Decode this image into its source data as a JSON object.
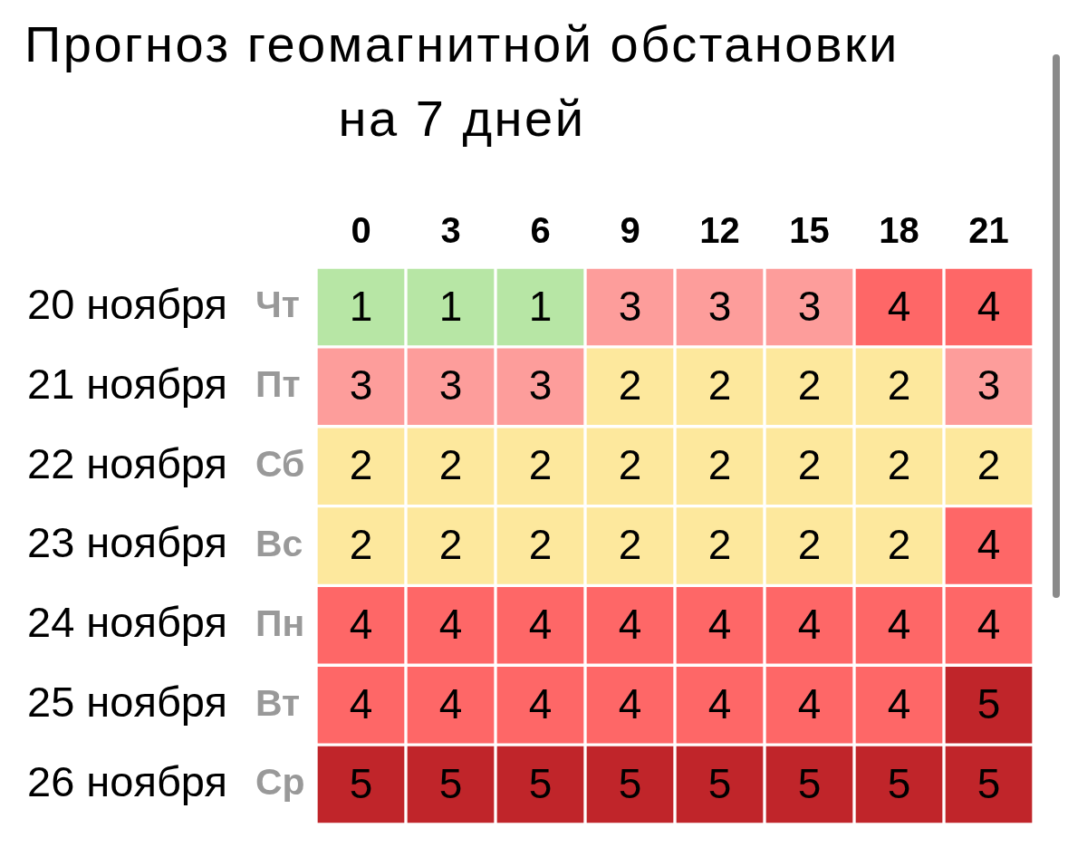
{
  "chart_data": {
    "type": "heatmap",
    "title": "Прогноз геомагнитной обстановки на 7 дней",
    "categories": [
      "0",
      "3",
      "6",
      "9",
      "12",
      "15",
      "18",
      "21"
    ],
    "y_categories": [
      "20 ноября",
      "21 ноября",
      "22 ноября",
      "23 ноября",
      "24 ноября",
      "25 ноября",
      "26 ноября"
    ],
    "y2_categories": [
      "Чт",
      "Пт",
      "Сб",
      "Вс",
      "Пн",
      "Вт",
      "Ср"
    ],
    "cells": [
      [
        1,
        1,
        1,
        3,
        3,
        3,
        4,
        4
      ],
      [
        3,
        3,
        3,
        2,
        2,
        2,
        2,
        3
      ],
      [
        2,
        2,
        2,
        2,
        2,
        2,
        2,
        2
      ],
      [
        2,
        2,
        2,
        2,
        2,
        2,
        2,
        4
      ],
      [
        4,
        4,
        4,
        4,
        4,
        4,
        4,
        4
      ],
      [
        4,
        4,
        4,
        4,
        4,
        4,
        4,
        5
      ],
      [
        5,
        5,
        5,
        5,
        5,
        5,
        5,
        5
      ]
    ],
    "colors": [
      [
        "#b7e6a5",
        "#b7e6a5",
        "#b7e6a5",
        "#fd9d9b",
        "#fd9d9b",
        "#fd9d9b",
        "#fe6767",
        "#fe6767"
      ],
      [
        "#fd9d9b",
        "#fd9d9b",
        "#fd9d9b",
        "#fde89d",
        "#fde89d",
        "#fde89d",
        "#fde89d",
        "#fd9d9b"
      ],
      [
        "#fde89d",
        "#fde89d",
        "#fde89d",
        "#fde89d",
        "#fde89d",
        "#fde89d",
        "#fde89d",
        "#fde89d"
      ],
      [
        "#fde89d",
        "#fde89d",
        "#fde89d",
        "#fde89d",
        "#fde89d",
        "#fde89d",
        "#fde89d",
        "#fe6767"
      ],
      [
        "#fe6767",
        "#fe6767",
        "#fe6767",
        "#fe6767",
        "#fe6767",
        "#fe6767",
        "#fe6767",
        "#fe6767"
      ],
      [
        "#fe6767",
        "#fe6767",
        "#fe6767",
        "#fe6767",
        "#fe6767",
        "#fe6767",
        "#fe6767",
        "#c0252a"
      ],
      [
        "#c0252a",
        "#c0252a",
        "#c0252a",
        "#c0252a",
        "#c0252a",
        "#c0252a",
        "#c0252a",
        "#c0252a"
      ]
    ],
    "data_labels": true
  }
}
